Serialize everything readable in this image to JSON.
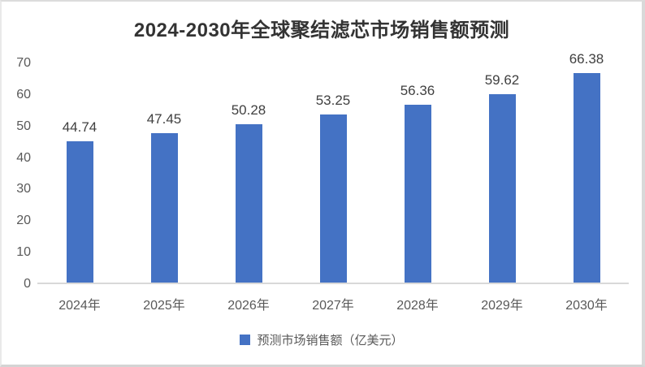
{
  "title": "2024-2030年全球聚结滤芯市场销售额预测",
  "chart_data": {
    "type": "bar",
    "title": "2024-2030年全球聚结滤芯市场销售额预测",
    "categories": [
      "2024年",
      "2025年",
      "2026年",
      "2027年",
      "2028年",
      "2029年",
      "2030年"
    ],
    "series": [
      {
        "name": "预测市场销售额（亿美元）",
        "values": [
          44.74,
          47.45,
          50.28,
          53.25,
          56.36,
          59.62,
          66.38
        ]
      }
    ],
    "xlabel": "",
    "ylabel": "",
    "ylim": [
      0,
      70
    ],
    "yticks": [
      0,
      10,
      20,
      30,
      40,
      50,
      60,
      70
    ],
    "grid": false,
    "data_labels": true,
    "legend_position": "bottom",
    "bar_color": "#4472C4"
  },
  "legend": {
    "marker": "square",
    "label": "预测市场销售额（亿美元）"
  },
  "colors": {
    "bar": "#4472C4",
    "title_text": "#333333",
    "axis_text": "#595959",
    "value_text": "#404040",
    "axis_line": "#d9d9d9",
    "background": "#ffffff",
    "frame_border": "#d9d9d9"
  }
}
